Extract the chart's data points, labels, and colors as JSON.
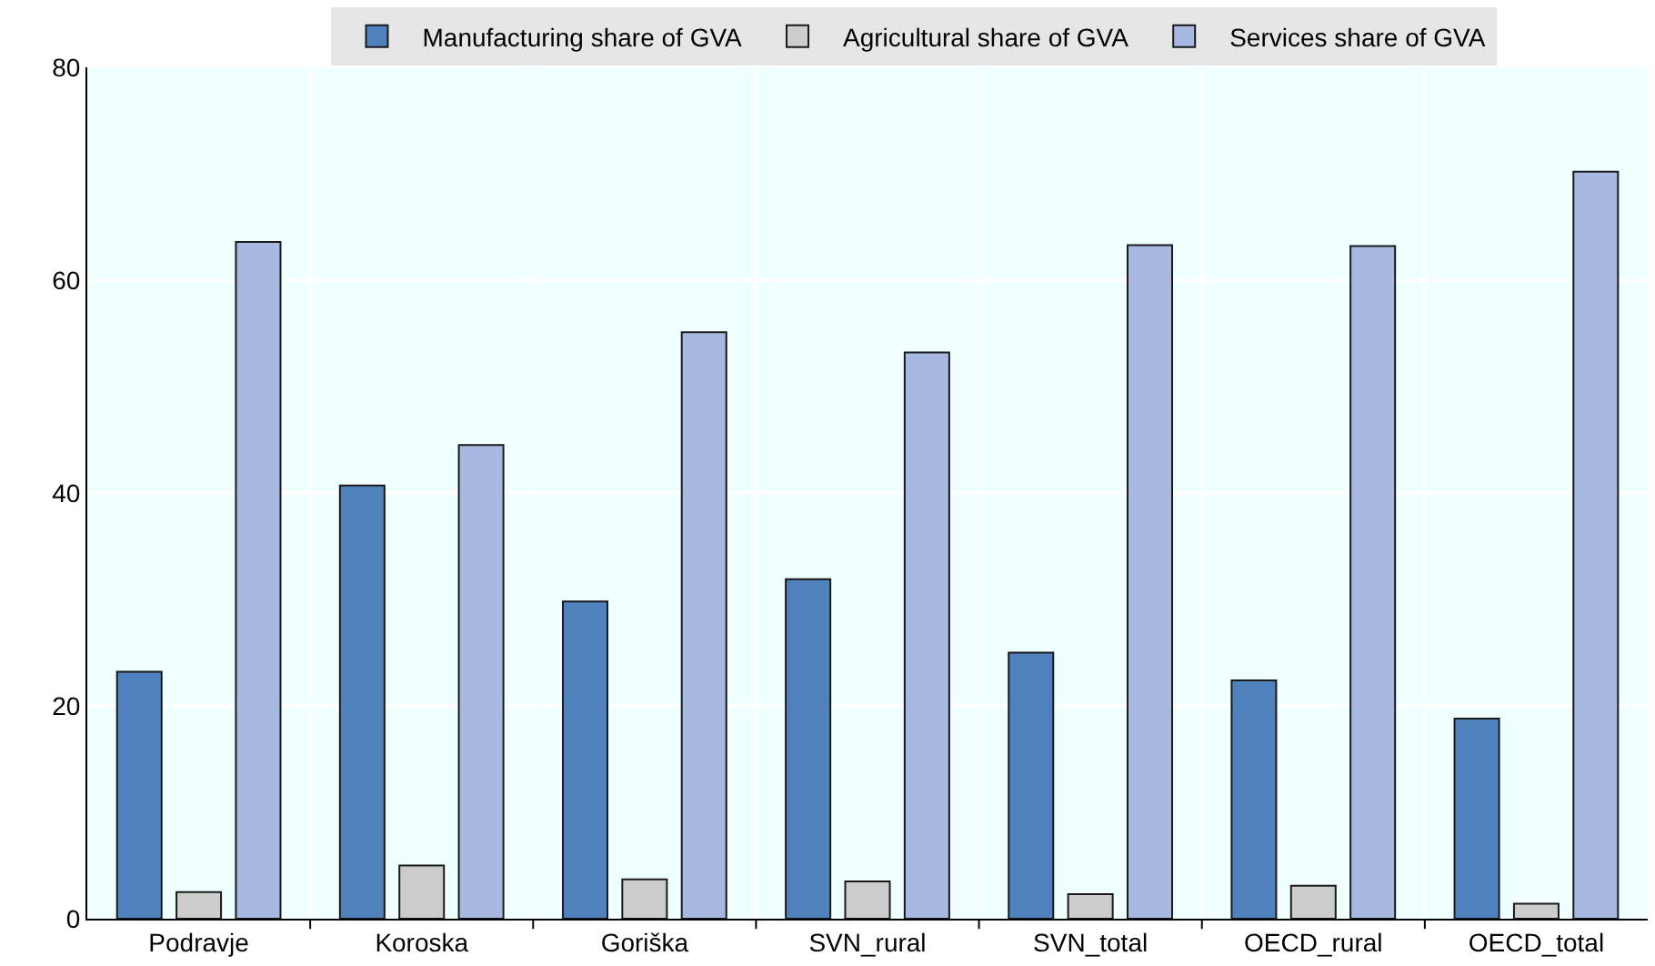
{
  "chart_data": {
    "type": "bar",
    "categories": [
      "Podravje",
      "Koroska",
      "Goriška",
      "SVN_rural",
      "SVN_total",
      "OECD_rural",
      "OECD_total"
    ],
    "series": [
      {
        "name": "Manufacturing share of GVA",
        "color": "#4f81bd",
        "values": [
          23.2,
          40.7,
          29.8,
          31.9,
          25.0,
          22.4,
          18.8
        ]
      },
      {
        "name": "Agricultural share of GVA",
        "color": "#cccccc",
        "values": [
          2.5,
          5.0,
          3.7,
          3.5,
          2.3,
          3.1,
          1.4
        ]
      },
      {
        "name": "Services share of GVA",
        "color": "#a7b8e1",
        "values": [
          63.6,
          44.5,
          55.1,
          53.2,
          63.3,
          63.2,
          70.2
        ]
      }
    ],
    "ylim": [
      0,
      80
    ],
    "yticks": [
      0,
      20,
      40,
      60,
      80
    ],
    "grid": "y",
    "legend": "top"
  }
}
